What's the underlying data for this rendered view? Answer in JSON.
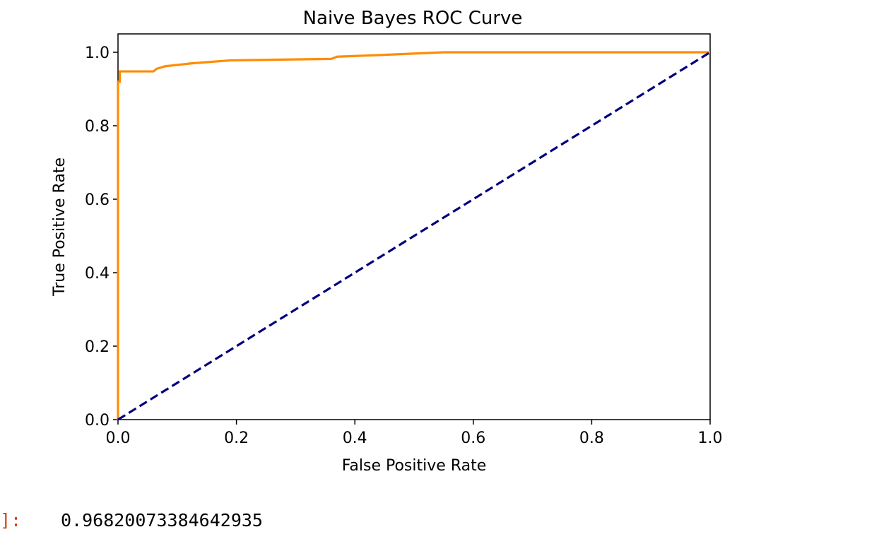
{
  "output": {
    "prompt": "]:",
    "value": "0.96820073384642935"
  },
  "chart_data": {
    "type": "line",
    "title": "Naive Bayes ROC Curve",
    "xlabel": "False Positive Rate",
    "ylabel": "True Positive Rate",
    "xlim": [
      0.0,
      1.0
    ],
    "ylim": [
      0.0,
      1.05
    ],
    "xticks": [
      "0.0",
      "0.2",
      "0.4",
      "0.6",
      "0.8",
      "1.0"
    ],
    "yticks": [
      "0.0",
      "0.2",
      "0.4",
      "0.6",
      "0.8",
      "1.0"
    ],
    "grid": false,
    "legend": "none",
    "series": [
      {
        "color": "#ff8c00",
        "style": "solid",
        "x": [
          0.0,
          0.0,
          0.003,
          0.003,
          0.06,
          0.065,
          0.065,
          0.08,
          0.08,
          0.125,
          0.125,
          0.19,
          0.19,
          0.36,
          0.36,
          0.37,
          0.37,
          0.45,
          0.45,
          0.55,
          0.55,
          1.0
        ],
        "y": [
          0.0,
          0.92,
          0.92,
          0.948,
          0.948,
          0.955,
          0.955,
          0.962,
          0.962,
          0.97,
          0.97,
          0.978,
          0.978,
          0.982,
          0.982,
          0.988,
          0.988,
          0.993,
          0.993,
          1.0,
          1.0,
          1.0
        ]
      },
      {
        "color": "#000080",
        "style": "dashed",
        "x": [
          0.0,
          1.0
        ],
        "y": [
          0.0,
          1.0
        ]
      }
    ]
  }
}
